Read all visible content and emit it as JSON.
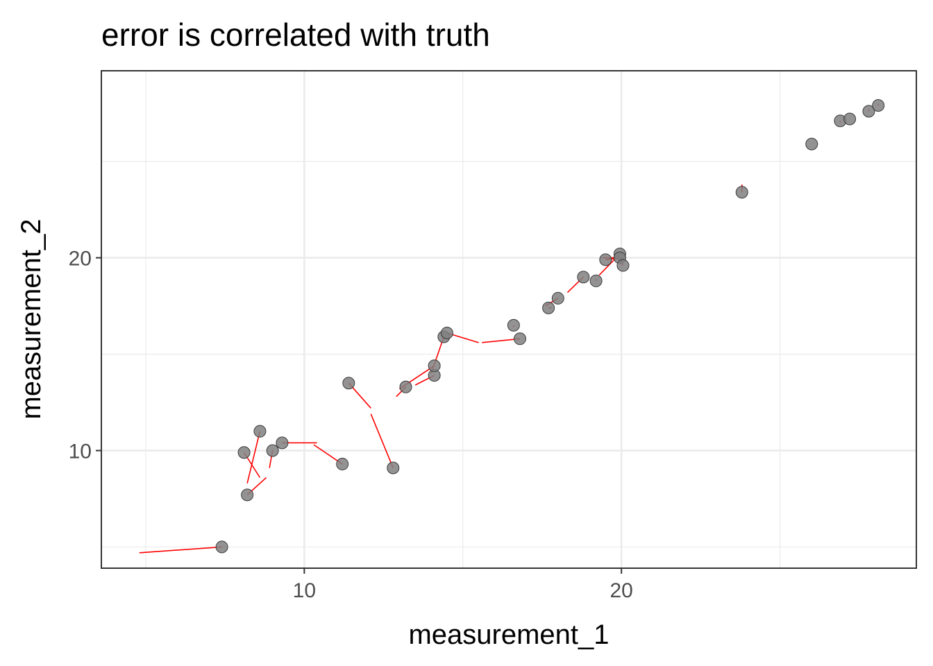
{
  "chart_data": {
    "type": "scatter",
    "title": "error is correlated with truth",
    "xlabel": "measurement_1",
    "ylabel": "measurement_2",
    "xlim": [
      3.6,
      29.3
    ],
    "ylim": [
      3.9,
      29.7
    ],
    "x_ticks": [
      10,
      20
    ],
    "y_ticks": [
      10,
      20
    ],
    "x_tick_labels": [
      "10",
      "20"
    ],
    "y_tick_labels": [
      "10",
      "20"
    ],
    "x_minor_ticks": [
      5,
      15,
      25
    ],
    "y_minor_ticks": [
      5,
      15,
      25
    ],
    "grid": true,
    "legend": "none",
    "colors": {
      "point_fill": "#808080",
      "point_stroke": "#3a3a3a",
      "segment": "#ff0000",
      "grid": "#ebebeb",
      "panel_border": "#333333"
    },
    "points": [
      {
        "x": 7.4,
        "y": 5.0,
        "x_true": 4.8,
        "y_true": 4.7
      },
      {
        "x": 8.2,
        "y": 7.7,
        "x_true": 8.8,
        "y_true": 8.6
      },
      {
        "x": 8.1,
        "y": 9.9,
        "x_true": 8.6,
        "y_true": 8.6
      },
      {
        "x": 8.6,
        "y": 11.0,
        "x_true": 8.2,
        "y_true": 8.3
      },
      {
        "x": 9.0,
        "y": 10.0,
        "x_true": 8.9,
        "y_true": 9.1
      },
      {
        "x": 9.3,
        "y": 10.4,
        "x_true": 10.4,
        "y_true": 10.4
      },
      {
        "x": 11.2,
        "y": 9.3,
        "x_true": 10.3,
        "y_true": 10.3
      },
      {
        "x": 11.4,
        "y": 13.5,
        "x_true": 12.1,
        "y_true": 12.2
      },
      {
        "x": 12.8,
        "y": 9.1,
        "x_true": 12.1,
        "y_true": 11.9
      },
      {
        "x": 13.2,
        "y": 13.3,
        "x_true": 12.9,
        "y_true": 12.8
      },
      {
        "x": 14.1,
        "y": 13.9,
        "x_true": 13.5,
        "y_true": 13.4
      },
      {
        "x": 14.1,
        "y": 14.4,
        "x_true": 13.0,
        "y_true": 13.2
      },
      {
        "x": 14.4,
        "y": 15.9,
        "x_true": 14.0,
        "y_true": 14.0
      },
      {
        "x": 14.5,
        "y": 16.1,
        "x_true": 15.5,
        "y_true": 15.6
      },
      {
        "x": 16.6,
        "y": 16.5,
        "x_true": 16.6,
        "y_true": 16.4
      },
      {
        "x": 16.8,
        "y": 15.8,
        "x_true": 15.6,
        "y_true": 15.6
      },
      {
        "x": 17.7,
        "y": 17.4,
        "x_true": 17.8,
        "y_true": 17.4
      },
      {
        "x": 18.0,
        "y": 17.9,
        "x_true": 17.6,
        "y_true": 17.5
      },
      {
        "x": 18.8,
        "y": 19.0,
        "x_true": 18.3,
        "y_true": 18.2
      },
      {
        "x": 19.2,
        "y": 18.8,
        "x_true": 19.2,
        "y_true": 18.9
      },
      {
        "x": 19.5,
        "y": 19.9,
        "x_true": 20.0,
        "y_true": 20.0
      },
      {
        "x": 19.95,
        "y": 20.2,
        "x_true": 19.3,
        "y_true": 19.1
      },
      {
        "x": 19.95,
        "y": 20.0,
        "x_true": 19.4,
        "y_true": 20.0
      },
      {
        "x": 20.05,
        "y": 19.6,
        "x_true": 19.9,
        "y_true": 20.1
      },
      {
        "x": 23.8,
        "y": 23.4,
        "x_true": 23.8,
        "y_true": 23.8
      },
      {
        "x": 26.0,
        "y": 25.9,
        "x_true": 26.0,
        "y_true": 25.9
      },
      {
        "x": 26.9,
        "y": 27.1,
        "x_true": 26.9,
        "y_true": 27.0
      },
      {
        "x": 27.2,
        "y": 27.2,
        "x_true": 27.2,
        "y_true": 27.2
      },
      {
        "x": 27.8,
        "y": 27.6,
        "x_true": 27.8,
        "y_true": 27.7
      },
      {
        "x": 28.1,
        "y": 27.9,
        "x_true": 28.1,
        "y_true": 28.0
      }
    ]
  }
}
